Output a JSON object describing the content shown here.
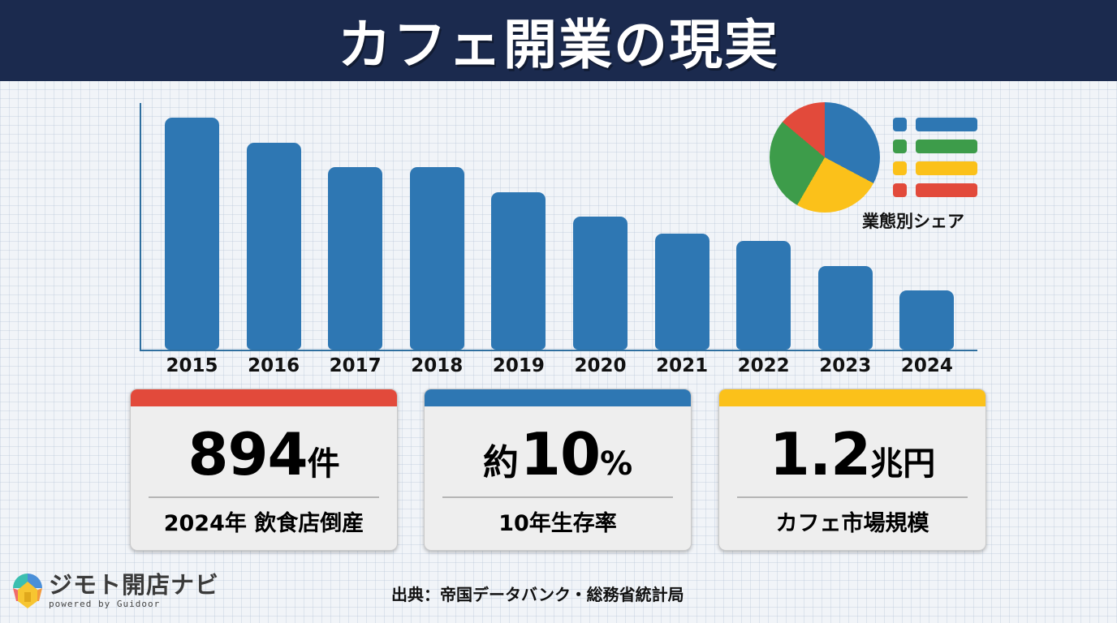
{
  "header": {
    "title": "カフェ開業の現実"
  },
  "chart_data": [
    {
      "type": "bar",
      "title": "",
      "xlabel": "",
      "ylabel": "",
      "categories": [
        "2015",
        "2016",
        "2017",
        "2018",
        "2019",
        "2020",
        "2021",
        "2022",
        "2023",
        "2024"
      ],
      "values": [
        286,
        255,
        225,
        225,
        194,
        164,
        143,
        134,
        103,
        73
      ],
      "value_note": "No y-axis scale shown; values are relative bar heights (px above baseline)",
      "colors": {
        "bar": "#2e77b3",
        "axis": "#2f6f9f"
      },
      "grid": false,
      "legend": null
    },
    {
      "type": "pie",
      "title": "業態別シェア",
      "slices": [
        {
          "color": "#2e77b3",
          "approx_share": 33
        },
        {
          "color": "#fbc11a",
          "approx_share": 25
        },
        {
          "color": "#3d9c4a",
          "approx_share": 28
        },
        {
          "color": "#e24a3b",
          "approx_share": 14
        }
      ],
      "legend": {
        "position": "right",
        "entries_unlabeled": true
      }
    }
  ],
  "pie": {
    "caption": "業態別シェア",
    "legend": [
      {
        "color": "#2e77b3"
      },
      {
        "color": "#3d9c4a"
      },
      {
        "color": "#fbc11a"
      },
      {
        "color": "#e24a3b"
      }
    ]
  },
  "cards": [
    {
      "accent": "#e24a3b",
      "prefix": "",
      "number": "894",
      "unit": "件",
      "label": "2024年 飲食店倒産"
    },
    {
      "accent": "#2e77b3",
      "prefix": "約",
      "number": "10",
      "unit": "%",
      "label": "10年生存率"
    },
    {
      "accent": "#fbc11a",
      "prefix": "",
      "number": "1.2",
      "unit": "兆円",
      "label": "カフェ市場規模"
    }
  ],
  "footer": {
    "logo_name": "ジモト開店ナビ",
    "logo_sub": "powered by Guidoor",
    "source": "出典：帝国データバンク・総務省統計局"
  }
}
